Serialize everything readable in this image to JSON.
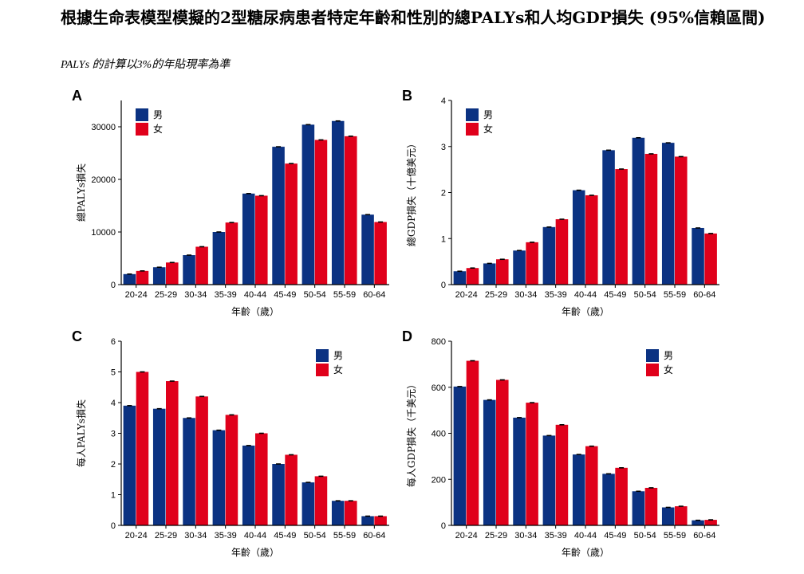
{
  "title": "根據生命表模型模擬的2型糖尿病患者特定年齡和性別的總PALYs和人均GDP損失 (95%信賴區間)",
  "subtitle": "PALYs 的計算以3%的年貼現率為準",
  "colors": {
    "male": "#0b3282",
    "female": "#e0001b"
  },
  "chart_data": [
    {
      "panel": "A",
      "type": "bar",
      "categories": [
        "20-24",
        "25-29",
        "30-34",
        "35-39",
        "40-44",
        "45-49",
        "50-54",
        "55-59",
        "60-64"
      ],
      "series": [
        {
          "name": "男",
          "values": [
            2000,
            3300,
            5600,
            10000,
            17300,
            26200,
            30400,
            31100,
            13300
          ]
        },
        {
          "name": "女",
          "values": [
            2600,
            4200,
            7200,
            11800,
            16900,
            23000,
            27500,
            28200,
            11900
          ]
        }
      ],
      "xlabel": "年齡（歲）",
      "ylabel": "總PALYs損失",
      "ylim": [
        0,
        35000
      ],
      "yticks": [
        0,
        10000,
        20000,
        30000
      ],
      "legend": "top-left"
    },
    {
      "panel": "B",
      "type": "bar",
      "categories": [
        "20-24",
        "25-29",
        "30-34",
        "35-39",
        "40-44",
        "45-49",
        "50-54",
        "55-59",
        "60-64"
      ],
      "series": [
        {
          "name": "男",
          "values": [
            0.29,
            0.46,
            0.74,
            1.25,
            2.05,
            2.92,
            3.19,
            3.08,
            1.23
          ]
        },
        {
          "name": "女",
          "values": [
            0.36,
            0.55,
            0.92,
            1.42,
            1.94,
            2.51,
            2.84,
            2.78,
            1.11
          ]
        }
      ],
      "xlabel": "年齡（歲）",
      "ylabel": "總GDP損失（十億美元）",
      "ylim": [
        0,
        4
      ],
      "yticks": [
        0,
        1,
        2,
        3,
        4
      ],
      "legend": "top-left"
    },
    {
      "panel": "C",
      "type": "bar",
      "categories": [
        "20-24",
        "25-29",
        "30-34",
        "35-39",
        "40-44",
        "45-49",
        "50-54",
        "55-59",
        "60-64"
      ],
      "series": [
        {
          "name": "男",
          "values": [
            3.9,
            3.8,
            3.5,
            3.1,
            2.6,
            2.0,
            1.4,
            0.8,
            0.3
          ]
        },
        {
          "name": "女",
          "values": [
            5.0,
            4.7,
            4.2,
            3.6,
            3.0,
            2.3,
            1.6,
            0.8,
            0.3
          ]
        }
      ],
      "xlabel": "年齡（歲）",
      "ylabel": "每人PALYs損失",
      "ylim": [
        0,
        6
      ],
      "yticks": [
        0,
        1,
        2,
        3,
        4,
        5,
        6
      ],
      "legend": "top-right"
    },
    {
      "panel": "D",
      "type": "bar",
      "categories": [
        "20-24",
        "25-29",
        "30-34",
        "35-39",
        "40-44",
        "45-49",
        "50-54",
        "55-59",
        "60-64"
      ],
      "series": [
        {
          "name": "男",
          "values": [
            603,
            545,
            468,
            390,
            308,
            224,
            148,
            78,
            22
          ]
        },
        {
          "name": "女",
          "values": [
            715,
            632,
            533,
            437,
            344,
            250,
            163,
            83,
            24
          ]
        }
      ],
      "xlabel": "年齡（歲）",
      "ylabel": "每人GDP損失（千美元）",
      "ylim": [
        0,
        800
      ],
      "yticks": [
        0,
        200,
        400,
        600,
        800
      ],
      "legend": "top-right"
    }
  ]
}
